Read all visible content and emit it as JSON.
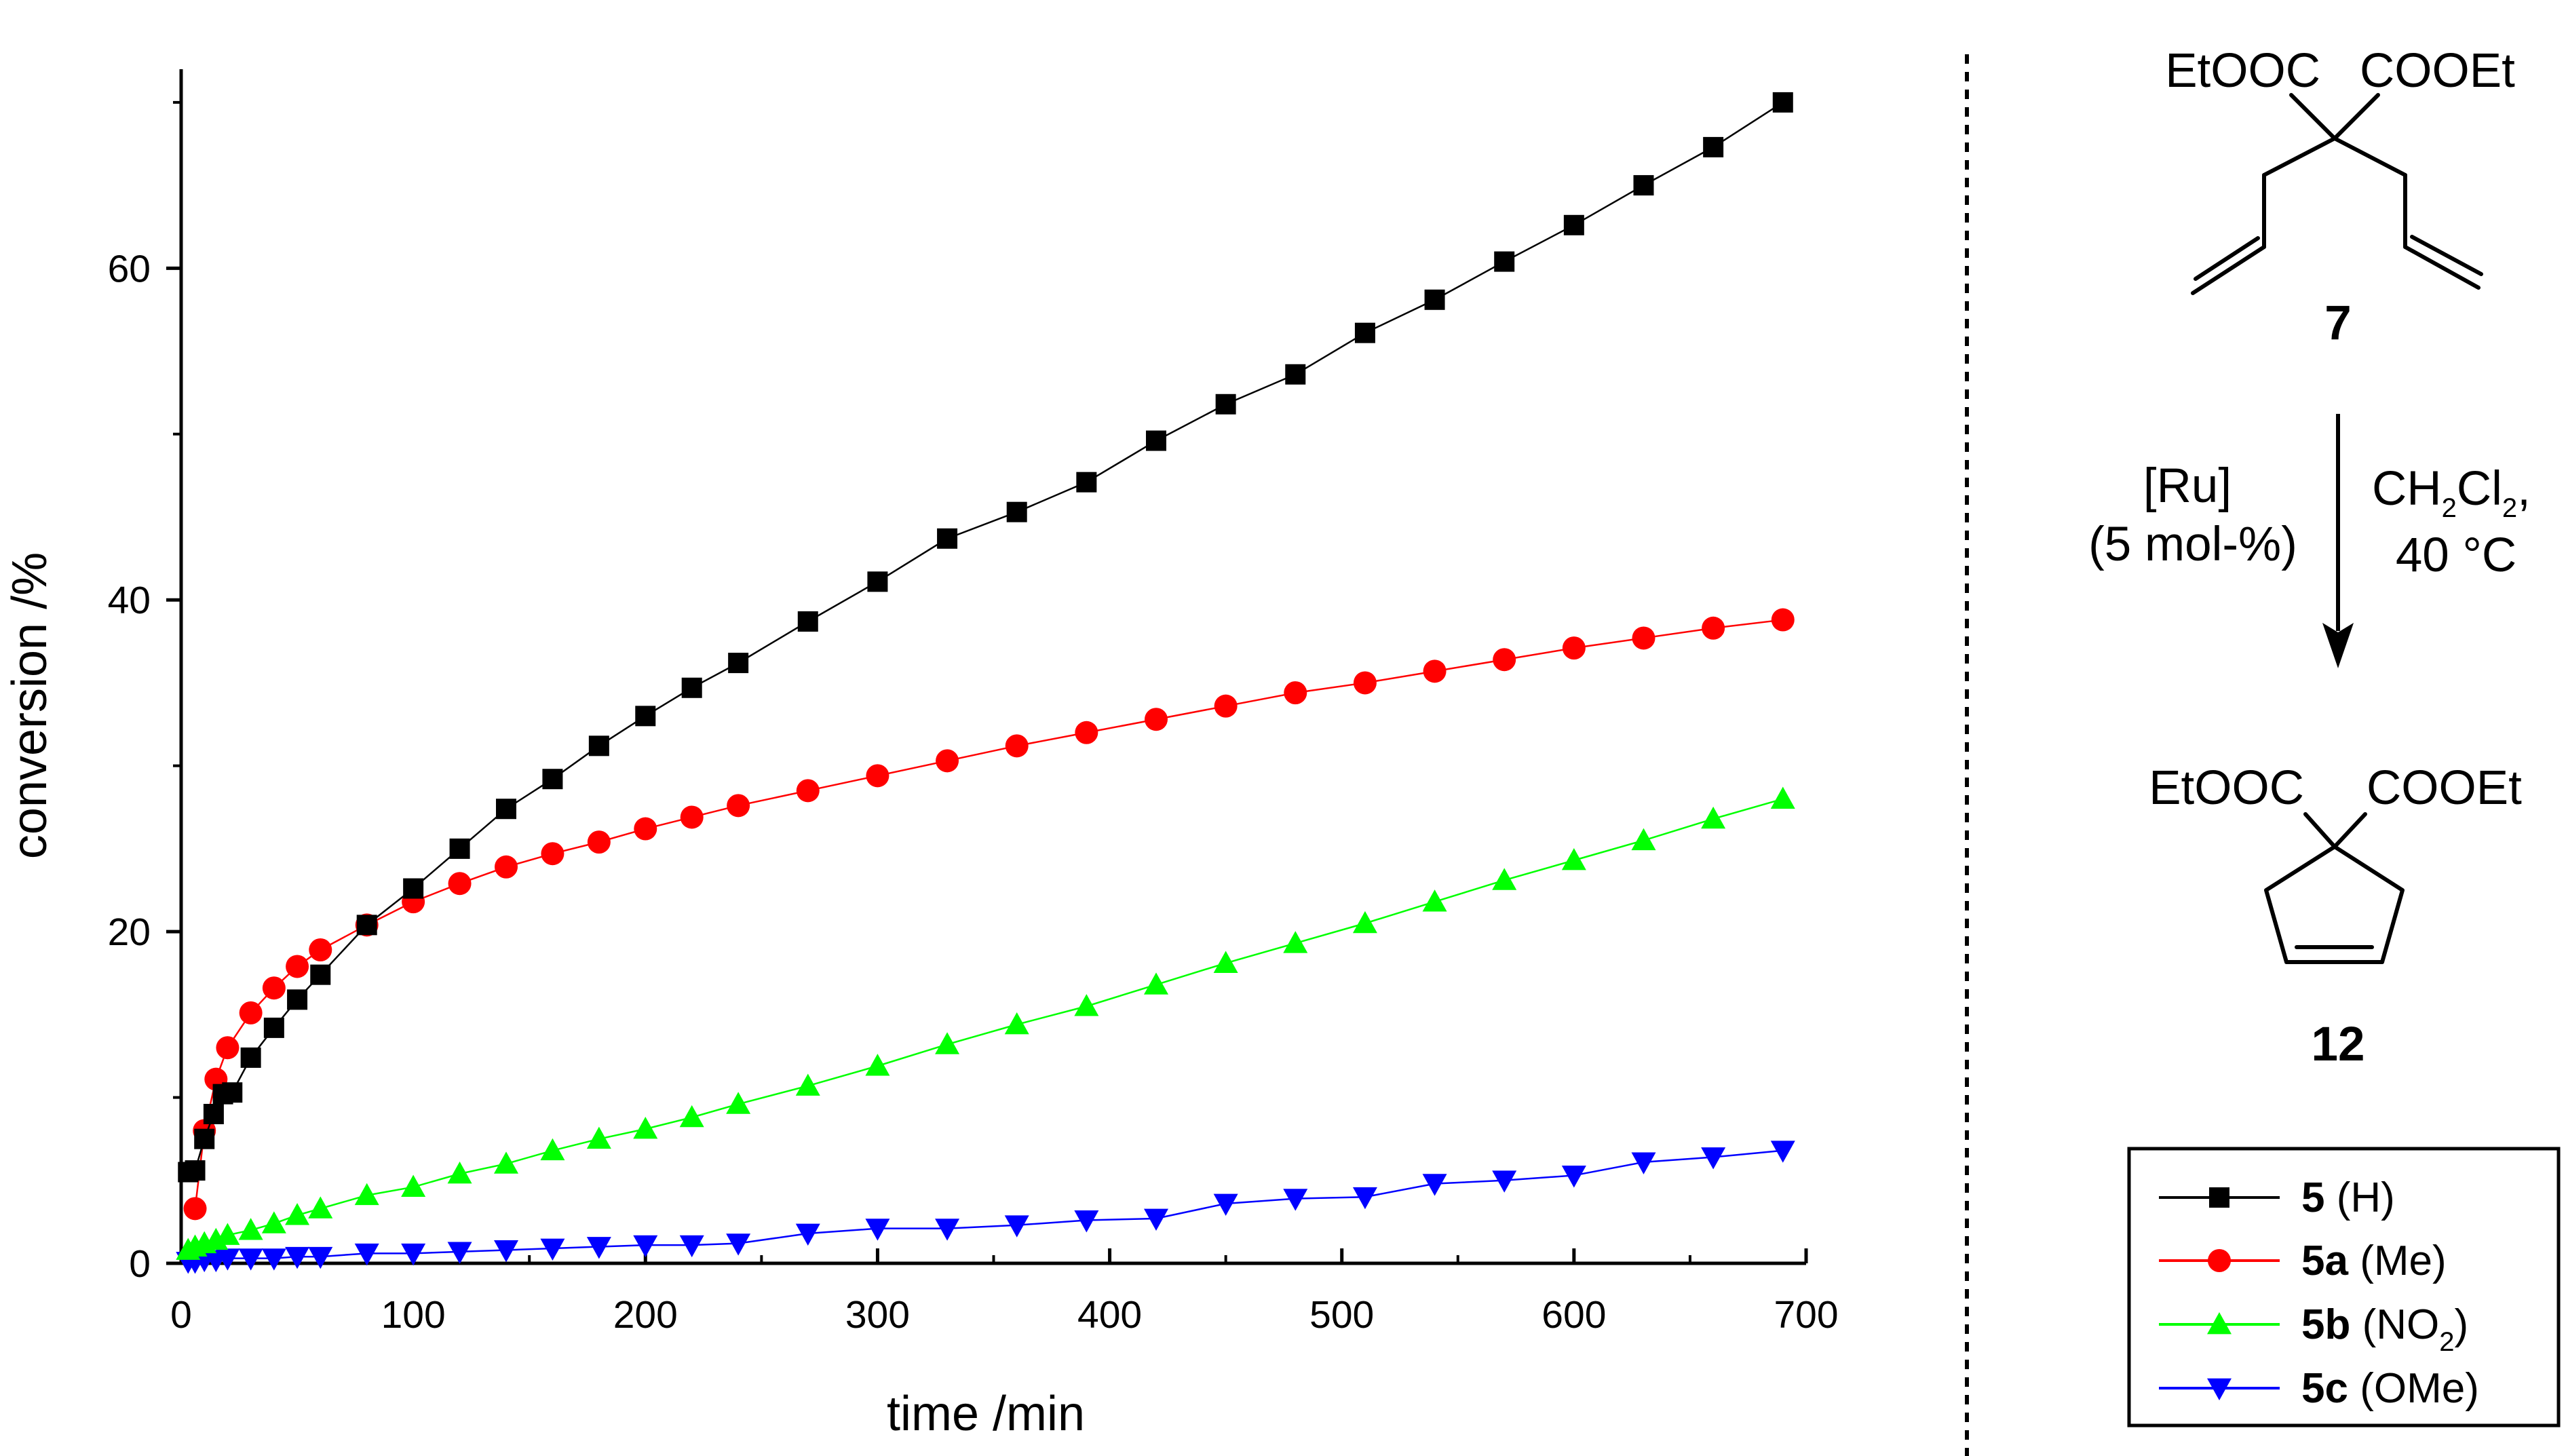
{
  "chart_data": {
    "type": "scatter",
    "xlabel": "time /min",
    "ylabel": "conversion /%",
    "xlim": [
      0,
      700
    ],
    "ylim": [
      0,
      72
    ],
    "xticks": [
      0,
      100,
      200,
      300,
      400,
      500,
      600,
      700
    ],
    "yticks": [
      0,
      20,
      40,
      60
    ],
    "grid": false,
    "legend_position": "bottom-right",
    "series": [
      {
        "name": "5 (H)",
        "legend": {
          "bold": "5",
          "rest": " (H)",
          "sub": ""
        },
        "color": "#000000",
        "marker": "square",
        "x": [
          3,
          6,
          10,
          14,
          18,
          22,
          30,
          40,
          50,
          60,
          80,
          100,
          120,
          140,
          160,
          180,
          200,
          220,
          240,
          270,
          300,
          330,
          360,
          390,
          420,
          450,
          480,
          510,
          540,
          570,
          600,
          630,
          660,
          690
        ],
        "y": [
          5.5,
          5.6,
          7.5,
          9.0,
          10.2,
          10.3,
          12.4,
          14.2,
          15.9,
          17.4,
          20.4,
          22.6,
          25.0,
          27.4,
          29.2,
          31.2,
          33.0,
          34.7,
          36.2,
          38.7,
          41.1,
          43.7,
          45.3,
          47.1,
          49.6,
          51.8,
          53.6,
          56.1,
          58.1,
          60.4,
          62.6,
          65.0,
          67.3,
          70.0
        ]
      },
      {
        "name": "5a (Me)",
        "legend": {
          "bold": "5a",
          "rest": " (Me)",
          "sub": ""
        },
        "color": "#ff0000",
        "marker": "circle",
        "x": [
          6,
          10,
          15,
          20,
          30,
          40,
          50,
          60,
          80,
          100,
          120,
          140,
          160,
          180,
          200,
          220,
          240,
          270,
          300,
          330,
          360,
          390,
          420,
          450,
          480,
          510,
          540,
          570,
          600,
          630,
          660,
          690
        ],
        "y": [
          3.3,
          8.0,
          11.1,
          13.0,
          15.1,
          16.6,
          17.9,
          18.9,
          20.4,
          21.8,
          22.9,
          23.9,
          24.7,
          25.4,
          26.2,
          26.9,
          27.6,
          28.5,
          29.4,
          30.3,
          31.2,
          32.0,
          32.8,
          33.6,
          34.4,
          35.0,
          35.7,
          36.4,
          37.1,
          37.7,
          38.3,
          38.8
        ]
      },
      {
        "name": "5b (NO2)",
        "legend": {
          "bold": "5b",
          "rest": " (NO",
          "sub": "2",
          "close": ")"
        },
        "color": "#00ff00",
        "marker": "triangle-up",
        "x": [
          3,
          6,
          10,
          15,
          20,
          30,
          40,
          50,
          60,
          80,
          100,
          120,
          140,
          160,
          180,
          200,
          220,
          240,
          270,
          300,
          330,
          360,
          390,
          420,
          450,
          480,
          510,
          540,
          570,
          600,
          630,
          660,
          690
        ],
        "y": [
          0.8,
          1.0,
          1.2,
          1.4,
          1.7,
          2.0,
          2.4,
          2.9,
          3.3,
          4.1,
          4.6,
          5.4,
          6.0,
          6.8,
          7.5,
          8.1,
          8.8,
          9.6,
          10.7,
          11.9,
          13.2,
          14.4,
          15.5,
          16.8,
          18.1,
          19.3,
          20.5,
          21.8,
          23.1,
          24.3,
          25.5,
          26.8,
          28.0
        ]
      },
      {
        "name": "5c (OMe)",
        "legend": {
          "bold": "5c",
          "rest": " (OMe)",
          "sub": ""
        },
        "color": "#0000ff",
        "marker": "triangle-down",
        "x": [
          3,
          6,
          10,
          15,
          20,
          30,
          40,
          50,
          60,
          80,
          100,
          120,
          140,
          160,
          180,
          200,
          220,
          240,
          270,
          300,
          330,
          360,
          390,
          420,
          450,
          480,
          510,
          540,
          570,
          600,
          630,
          660,
          690
        ],
        "y": [
          0.1,
          0.1,
          0.2,
          0.2,
          0.3,
          0.3,
          0.3,
          0.4,
          0.4,
          0.6,
          0.6,
          0.7,
          0.8,
          0.9,
          1.0,
          1.1,
          1.1,
          1.2,
          1.8,
          2.1,
          2.1,
          2.3,
          2.6,
          2.7,
          3.6,
          3.9,
          4.0,
          4.8,
          5.0,
          5.3,
          6.1,
          6.4,
          6.8
        ]
      }
    ]
  },
  "scheme": {
    "reactant_left_group": "EtOOC",
    "reactant_right_group": "COOEt",
    "reactant_label": "7",
    "catalyst": "[Ru]",
    "loading": "(5 mol-%)",
    "solvent_parts": [
      "CH",
      "2",
      "Cl",
      "2",
      ","
    ],
    "temperature": "40 °C",
    "product_left_group": "EtOOC",
    "product_right_group": "COOEt",
    "product_label": "12"
  }
}
